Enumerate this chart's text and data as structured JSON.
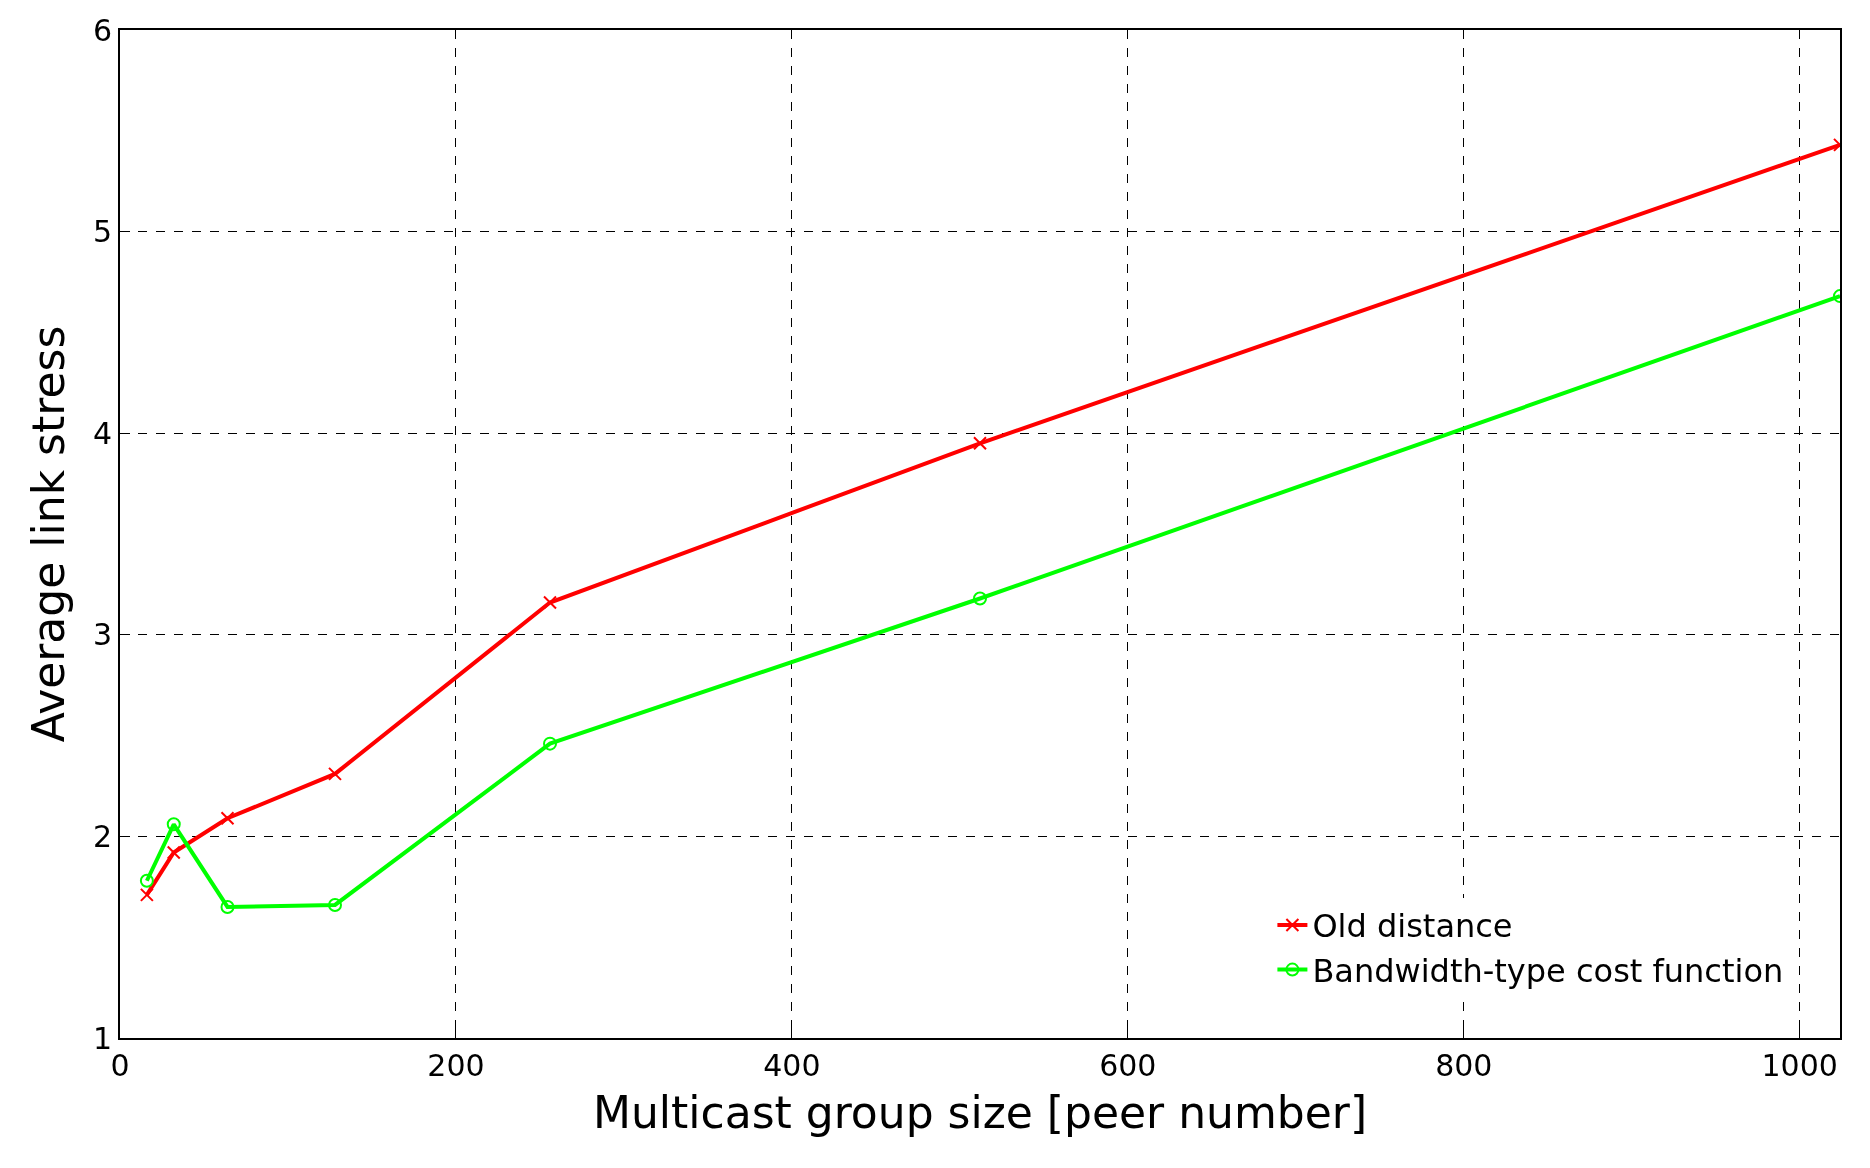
{
  "chart_data": {
    "type": "line",
    "xlabel": "Multicast group size [peer number]",
    "ylabel": "Average link stress",
    "x": [
      16,
      32,
      64,
      128,
      256,
      512,
      1024
    ],
    "series": [
      {
        "name": "Old distance",
        "color": "#ff0000",
        "marker": "cross",
        "values": [
          1.71,
          1.92,
          2.09,
          2.31,
          3.16,
          3.95,
          5.43
        ]
      },
      {
        "name": "Bandwidth-type cost function",
        "color": "#00ff00",
        "marker": "circle",
        "values": [
          1.78,
          2.06,
          1.65,
          1.66,
          2.46,
          3.18,
          4.68
        ]
      }
    ],
    "xlim": [
      0,
      1024
    ],
    "xticks": [
      0,
      200,
      400,
      600,
      800,
      1000
    ],
    "ylim": [
      1,
      6
    ],
    "yticks": [
      1,
      2,
      3,
      4,
      5,
      6
    ],
    "grid": true,
    "legend": "bottom right",
    "line_style": "solid"
  }
}
